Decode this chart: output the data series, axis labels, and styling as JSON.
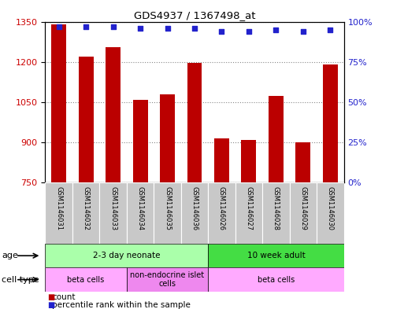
{
  "title": "GDS4937 / 1367498_at",
  "samples": [
    "GSM1146031",
    "GSM1146032",
    "GSM1146033",
    "GSM1146034",
    "GSM1146035",
    "GSM1146036",
    "GSM1146026",
    "GSM1146027",
    "GSM1146028",
    "GSM1146029",
    "GSM1146030"
  ],
  "counts": [
    1340,
    1218,
    1255,
    1058,
    1078,
    1195,
    915,
    908,
    1073,
    898,
    1190
  ],
  "percentile": [
    97,
    97,
    97,
    96,
    96,
    96,
    94,
    94,
    95,
    94,
    95
  ],
  "ylim_left": [
    750,
    1350
  ],
  "ylim_right": [
    0,
    100
  ],
  "yticks_left": [
    750,
    900,
    1050,
    1200,
    1350
  ],
  "yticks_right": [
    0,
    25,
    50,
    75,
    100
  ],
  "bar_color": "#bb0000",
  "dot_color": "#2222cc",
  "bar_width": 0.55,
  "age_groups": [
    {
      "label": "2-3 day neonate",
      "start": 0,
      "end": 6,
      "color": "#aaffaa"
    },
    {
      "label": "10 week adult",
      "start": 6,
      "end": 11,
      "color": "#44dd44"
    }
  ],
  "cell_type_groups": [
    {
      "label": "beta cells",
      "start": 0,
      "end": 3,
      "color": "#ffaaff"
    },
    {
      "label": "non-endocrine islet\ncells",
      "start": 3,
      "end": 6,
      "color": "#ee88ee"
    },
    {
      "label": "beta cells",
      "start": 6,
      "end": 11,
      "color": "#ffaaff"
    }
  ],
  "age_label": "age",
  "cell_type_label": "cell type",
  "legend_count_label": "count",
  "legend_percentile_label": "percentile rank within the sample",
  "background_color": "#ffffff",
  "grid_color": "#888888",
  "axis_color_left": "#cc0000",
  "axis_color_right": "#2222cc",
  "sample_col_color": "#c8c8c8",
  "border_color": "#000000"
}
